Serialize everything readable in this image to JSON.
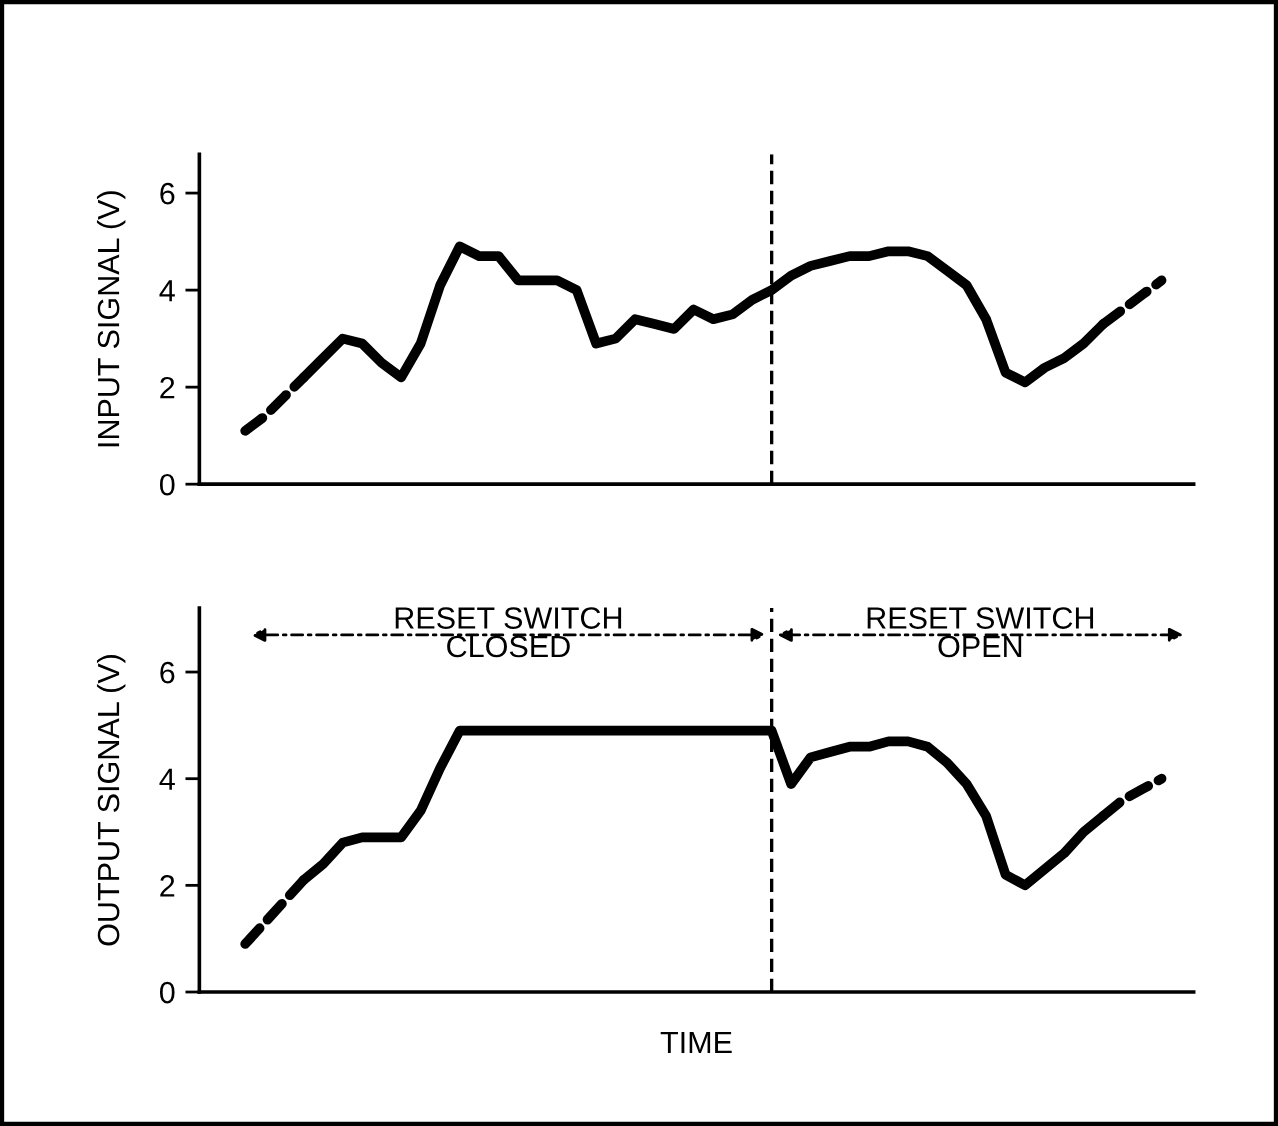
{
  "chart_data": [
    {
      "type": "line",
      "ylabel": "INPUT SIGNAL (V)",
      "categories": [
        null,
        null,
        null,
        null,
        null,
        null,
        null,
        null,
        null,
        null,
        null,
        null,
        null,
        null,
        null,
        null,
        null,
        null,
        null,
        null,
        null,
        null,
        null,
        null,
        null,
        null,
        null,
        null,
        null,
        null,
        null,
        null,
        null,
        null,
        null,
        null,
        null,
        null,
        null,
        null,
        null,
        null,
        null,
        null,
        null,
        null,
        null,
        null
      ],
      "series": [
        {
          "color": "#000000",
          "line_style": "dashed",
          "values": [
            1.1,
            1.4,
            1.8,
            2.2,
            null,
            null,
            null,
            null,
            null,
            null,
            null,
            null,
            null,
            null,
            null,
            null,
            null,
            null,
            null,
            null,
            null,
            null,
            null,
            null,
            null,
            null,
            null,
            null,
            null,
            null,
            null,
            null,
            null,
            null,
            null,
            null,
            null,
            null,
            null,
            null,
            null,
            null,
            null,
            null,
            null,
            null,
            null,
            null
          ]
        },
        {
          "color": "#000000",
          "line_style": "dashed",
          "values": [
            null,
            null,
            null,
            null,
            null,
            null,
            null,
            null,
            null,
            null,
            null,
            null,
            null,
            null,
            null,
            null,
            null,
            null,
            null,
            null,
            null,
            null,
            null,
            null,
            null,
            null,
            null,
            null,
            null,
            null,
            null,
            null,
            null,
            null,
            null,
            null,
            null,
            null,
            null,
            null,
            null,
            null,
            null,
            null,
            3.3,
            3.6,
            3.9,
            4.2
          ]
        },
        {
          "color": "#000000",
          "line_style": "solid",
          "values": [
            null,
            null,
            null,
            2.2,
            2.6,
            3.0,
            2.9,
            2.5,
            2.2,
            2.9,
            4.1,
            4.9,
            4.7,
            4.7,
            4.2,
            4.2,
            4.2,
            4.0,
            2.9,
            3.0,
            3.4,
            3.3,
            3.2,
            3.6,
            3.4,
            3.5,
            3.8,
            4.0,
            4.3,
            4.5,
            4.6,
            4.7,
            4.7,
            4.8,
            4.8,
            4.7,
            4.4,
            4.1,
            3.4,
            2.3,
            2.1,
            2.4,
            2.6,
            2.9,
            3.3,
            null,
            null,
            null
          ]
        }
      ],
      "ylim": [
        0,
        6.8
      ],
      "yticks": [
        0,
        2,
        4,
        6
      ],
      "grid": false,
      "tick_labels": "y"
    },
    {
      "type": "line",
      "ylabel": "OUTPUT SIGNAL (V)",
      "xlabel": "TIME",
      "categories": [
        null,
        null,
        null,
        null,
        null,
        null,
        null,
        null,
        null,
        null,
        null,
        null,
        null,
        null,
        null,
        null,
        null,
        null,
        null,
        null,
        null,
        null,
        null,
        null,
        null,
        null,
        null,
        null,
        null,
        null,
        null,
        null,
        null,
        null,
        null,
        null,
        null,
        null,
        null,
        null,
        null,
        null,
        null,
        null,
        null,
        null,
        null,
        null
      ],
      "series": [
        {
          "color": "#000000",
          "line_style": "dashed",
          "values": [
            0.9,
            1.3,
            1.7,
            2.1,
            null,
            null,
            null,
            null,
            null,
            null,
            null,
            null,
            null,
            null,
            null,
            null,
            null,
            null,
            null,
            null,
            null,
            null,
            null,
            null,
            null,
            null,
            null,
            null,
            null,
            null,
            null,
            null,
            null,
            null,
            null,
            null,
            null,
            null,
            null,
            null,
            null,
            null,
            null,
            null,
            null,
            null,
            null,
            null
          ]
        },
        {
          "color": "#000000",
          "line_style": "dashed",
          "values": [
            null,
            null,
            null,
            null,
            null,
            null,
            null,
            null,
            null,
            null,
            null,
            null,
            null,
            null,
            null,
            null,
            null,
            null,
            null,
            null,
            null,
            null,
            null,
            null,
            null,
            null,
            null,
            null,
            null,
            null,
            null,
            null,
            null,
            null,
            null,
            null,
            null,
            null,
            null,
            null,
            null,
            null,
            null,
            null,
            3.3,
            3.6,
            3.8,
            4.0
          ]
        },
        {
          "color": "#000000",
          "line_style": "solid",
          "values": [
            null,
            null,
            null,
            2.1,
            2.4,
            2.8,
            2.9,
            2.9,
            2.9,
            3.4,
            4.2,
            4.9,
            4.9,
            4.9,
            4.9,
            4.9,
            4.9,
            4.9,
            4.9,
            4.9,
            4.9,
            4.9,
            4.9,
            4.9,
            4.9,
            4.9,
            4.9,
            4.9,
            3.9,
            4.4,
            4.5,
            4.6,
            4.6,
            4.7,
            4.7,
            4.6,
            4.3,
            3.9,
            3.3,
            2.2,
            2.0,
            2.3,
            2.6,
            3.0,
            3.3,
            null,
            null,
            null
          ]
        }
      ],
      "ylim": [
        0,
        7.2
      ],
      "yticks": [
        0,
        2,
        4,
        6
      ],
      "grid": false,
      "tick_labels": "y",
      "annotations": [
        "RESET SWITCH\nCLOSED",
        "RESET SWITCH\nOPEN"
      ]
    }
  ]
}
